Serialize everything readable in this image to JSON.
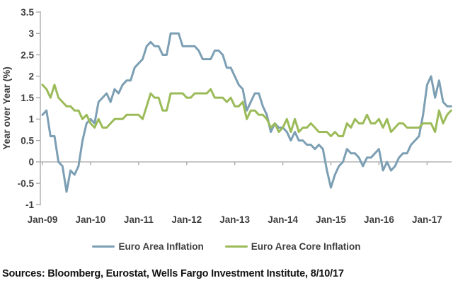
{
  "source_note": "Sources: Bloomberg, Eurostat, Wells Fargo Investment Institute, 8/10/17",
  "chart_data": {
    "type": "line",
    "title": "",
    "xlabel": "",
    "ylabel": "Year over Year (%)",
    "ylim": [
      -1,
      3.5
    ],
    "y_ticks": [
      3.5,
      3,
      2.5,
      2,
      1.5,
      1,
      0.5,
      0,
      -0.5,
      -1
    ],
    "x_tick_labels": [
      "Jan-09",
      "Jan-10",
      "Jan-11",
      "Jan-12",
      "Jan-13",
      "Jan-14",
      "Jan-15",
      "Jan-16",
      "Jan-17"
    ],
    "x_start": "Jan-09",
    "x_end": "Jul-17",
    "x_frequency": "monthly",
    "grid": false,
    "legend_position": "bottom",
    "axis_color": "#a6a6a6",
    "text_color": "#3f3f3f",
    "series": [
      {
        "name": "Euro Area Inflation",
        "color": "#7c9fb4",
        "values": [
          1.1,
          1.2,
          0.6,
          0.6,
          0.0,
          -0.1,
          -0.7,
          -0.2,
          -0.3,
          -0.1,
          0.5,
          0.9,
          1.0,
          0.9,
          1.4,
          1.5,
          1.6,
          1.4,
          1.7,
          1.6,
          1.8,
          1.9,
          1.9,
          2.2,
          2.3,
          2.4,
          2.7,
          2.8,
          2.7,
          2.7,
          2.5,
          2.5,
          3.0,
          3.0,
          3.0,
          2.7,
          2.7,
          2.7,
          2.7,
          2.6,
          2.4,
          2.4,
          2.4,
          2.6,
          2.6,
          2.5,
          2.2,
          2.2,
          2.0,
          1.8,
          1.7,
          1.2,
          1.4,
          1.6,
          1.6,
          1.3,
          1.1,
          0.7,
          0.9,
          0.8,
          0.8,
          0.7,
          0.5,
          0.7,
          0.5,
          0.5,
          0.4,
          0.4,
          0.3,
          0.4,
          0.3,
          -0.2,
          -0.6,
          -0.3,
          -0.1,
          0.0,
          0.3,
          0.2,
          0.2,
          0.1,
          -0.1,
          0.1,
          0.1,
          0.2,
          0.3,
          -0.2,
          0.0,
          -0.2,
          -0.1,
          0.1,
          0.2,
          0.2,
          0.4,
          0.5,
          0.6,
          1.1,
          1.8,
          2.0,
          1.5,
          1.9,
          1.4,
          1.3,
          1.3
        ]
      },
      {
        "name": "Euro Area Core Inflation",
        "color": "#9bbb59",
        "values": [
          1.8,
          1.7,
          1.5,
          1.8,
          1.5,
          1.4,
          1.3,
          1.3,
          1.2,
          1.2,
          1.0,
          1.1,
          0.9,
          0.8,
          1.0,
          0.8,
          0.8,
          0.9,
          1.0,
          1.0,
          1.0,
          1.1,
          1.1,
          1.1,
          1.1,
          1.0,
          1.3,
          1.6,
          1.5,
          1.5,
          1.2,
          1.2,
          1.6,
          1.6,
          1.6,
          1.6,
          1.5,
          1.5,
          1.6,
          1.6,
          1.6,
          1.6,
          1.7,
          1.5,
          1.5,
          1.5,
          1.4,
          1.5,
          1.3,
          1.3,
          1.4,
          1.0,
          1.2,
          1.2,
          1.1,
          1.1,
          1.0,
          0.8,
          0.9,
          0.7,
          0.8,
          1.0,
          0.7,
          1.0,
          0.7,
          0.8,
          0.8,
          0.9,
          0.8,
          0.7,
          0.7,
          0.7,
          0.6,
          0.7,
          0.6,
          0.6,
          0.9,
          0.8,
          1.0,
          0.9,
          0.9,
          1.1,
          0.9,
          0.9,
          1.0,
          0.8,
          1.0,
          0.7,
          0.8,
          0.9,
          0.9,
          0.8,
          0.8,
          0.8,
          0.8,
          0.9,
          0.9,
          0.9,
          0.7,
          1.2,
          0.9,
          1.1,
          1.2
        ]
      }
    ]
  }
}
